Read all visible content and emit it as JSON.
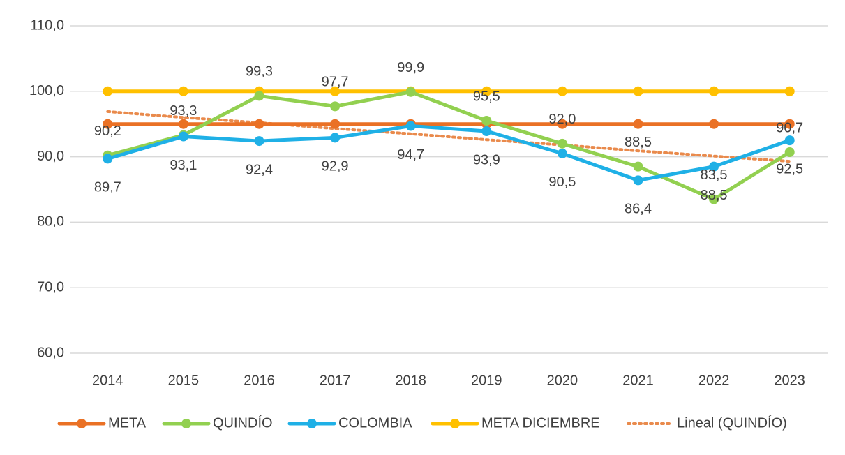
{
  "chart_data": {
    "type": "line",
    "categories": [
      "2014",
      "2015",
      "2016",
      "2017",
      "2018",
      "2019",
      "2020",
      "2021",
      "2022",
      "2023"
    ],
    "ylim": [
      60,
      110
    ],
    "yticks": [
      {
        "value": 60,
        "label": "60,0"
      },
      {
        "value": 70,
        "label": "70,0"
      },
      {
        "value": 80,
        "label": "80,0"
      },
      {
        "value": 90,
        "label": "90,0"
      },
      {
        "value": 100,
        "label": "100,0"
      },
      {
        "value": 110,
        "label": "110,0"
      }
    ],
    "grid": true,
    "legend": "bottom",
    "series": [
      {
        "name": "META",
        "color": "#ea7125",
        "values": [
          95,
          95,
          95,
          95,
          95,
          95,
          95,
          95,
          95,
          95
        ]
      },
      {
        "name": "QUINDÍO",
        "color": "#92d050",
        "values": [
          90.2,
          93.3,
          99.3,
          97.7,
          99.9,
          95.5,
          92.0,
          88.5,
          83.5,
          90.7
        ],
        "value_labels": [
          "90,2",
          "93,3",
          "99,3",
          "97,7",
          "99,9",
          "95,5",
          "92,0",
          "88,5",
          "83,5",
          "90,7"
        ]
      },
      {
        "name": "COLOMBIA",
        "color": "#1fb0e6",
        "values": [
          89.7,
          93.1,
          92.4,
          92.9,
          94.7,
          93.9,
          90.5,
          86.4,
          88.5,
          92.5
        ],
        "value_labels": [
          "89,7",
          "93,1",
          "92,4",
          "92,9",
          "94,7",
          "93,9",
          "90,5",
          "86,4",
          "88,5",
          "92,5"
        ]
      },
      {
        "name": "META DICIEMBRE",
        "color": "#ffc000",
        "values": [
          100,
          100,
          100,
          100,
          100,
          100,
          100,
          100,
          100,
          100
        ]
      },
      {
        "name": "Lineal (QUINDÍO)",
        "color": "#e98a4c",
        "dotted": true,
        "values": [
          96.9,
          96.0,
          95.2,
          94.3,
          93.5,
          92.6,
          91.8,
          90.9,
          90.1,
          89.3
        ]
      }
    ]
  }
}
